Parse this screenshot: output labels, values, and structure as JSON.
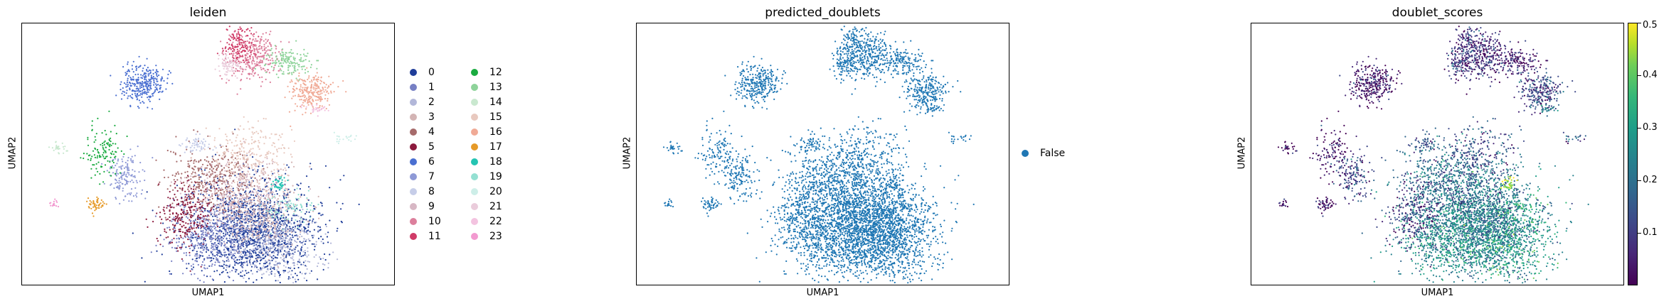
{
  "panels": [
    {
      "title": "leiden",
      "xlabel": "UMAP1",
      "ylabel": "UMAP2",
      "legend": [
        "0",
        "1",
        "2",
        "3",
        "4",
        "5",
        "6",
        "7",
        "8",
        "9",
        "10",
        "11",
        "12",
        "13",
        "14",
        "15",
        "16",
        "17",
        "18",
        "19",
        "20",
        "21",
        "22",
        "23"
      ],
      "legend_colors": [
        "#1f3d99",
        "#7780c4",
        "#b2b7d9",
        "#d3b4b4",
        "#a66b6b",
        "#8c1a3d",
        "#4a6fd1",
        "#8e99d6",
        "#c6cde8",
        "#d7b7c4",
        "#dc7f9c",
        "#d03b67",
        "#1aab40",
        "#8ed39a",
        "#c9e8cf",
        "#e8c9bf",
        "#f0aa96",
        "#e69a28",
        "#24c4b2",
        "#94e0d2",
        "#cdeee8",
        "#eaccdb",
        "#f3c3e0",
        "#f29ad0"
      ]
    },
    {
      "title": "predicted_doublets",
      "xlabel": "UMAP1",
      "ylabel": "UMAP2",
      "legend": [
        "False"
      ],
      "legend_colors": [
        "#1f77b4"
      ]
    },
    {
      "title": "doublet_scores",
      "xlabel": "UMAP1",
      "ylabel": "UMAP2",
      "colorbar_ticks": [
        "0.1",
        "0.2",
        "0.3",
        "0.4",
        "0.5"
      ],
      "colorbar_range": [
        0.0,
        0.5
      ]
    }
  ],
  "chart_data": [
    {
      "type": "scatter",
      "title": "leiden",
      "xlabel": "UMAP1",
      "ylabel": "UMAP2",
      "legend_title": "",
      "categories": [
        "0",
        "1",
        "2",
        "3",
        "4",
        "5",
        "6",
        "7",
        "8",
        "9",
        "10",
        "11",
        "12",
        "13",
        "14",
        "15",
        "16",
        "17",
        "18",
        "19",
        "20",
        "21",
        "22",
        "23"
      ],
      "legend_placement": "right",
      "grid": false
    },
    {
      "type": "scatter",
      "title": "predicted_doublets",
      "xlabel": "UMAP1",
      "ylabel": "UMAP2",
      "categories": [
        "False"
      ],
      "legend_placement": "right",
      "grid": false
    },
    {
      "type": "scatter",
      "title": "doublet_scores",
      "xlabel": "UMAP1",
      "ylabel": "UMAP2",
      "colorbar_ticks": [
        0.1,
        0.2,
        0.3,
        0.4,
        0.5
      ],
      "colorbar_range": [
        0.0,
        0.5
      ],
      "colormap": "viridis",
      "grid": false
    }
  ]
}
